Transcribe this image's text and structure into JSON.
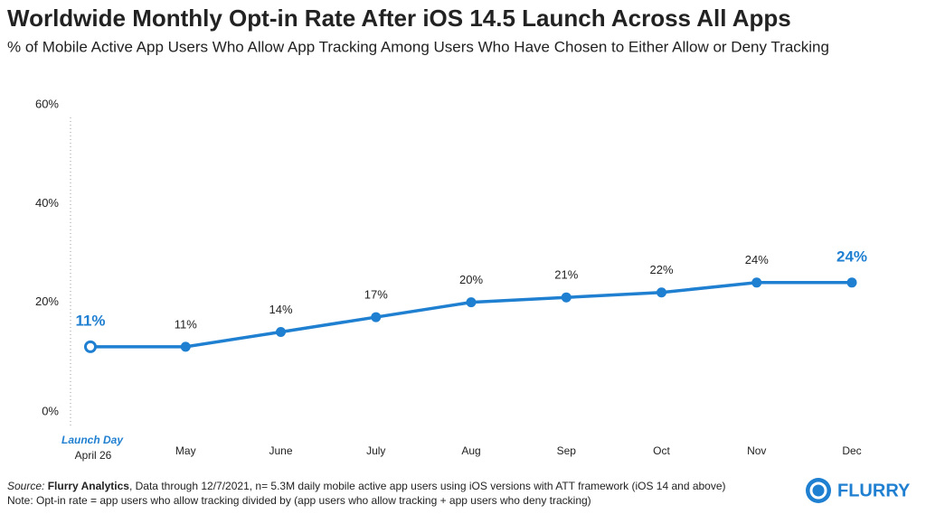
{
  "chart_data": {
    "type": "line",
    "title": "Worldwide Monthly Opt-in Rate After iOS 14.5 Launch Across All Apps",
    "subtitle": "% of Mobile Active App Users Who Allow App Tracking Among Users Who Have Chosen to Either Allow or Deny Tracking",
    "categories": [
      "April 26",
      "May",
      "June",
      "July",
      "Aug",
      "Sep",
      "Oct",
      "Nov",
      "Dec"
    ],
    "series": [
      {
        "color": "#1f7fd0",
        "values": [
          11,
          11,
          14,
          17,
          20,
          21,
          22,
          24,
          24
        ],
        "value_labels": [
          "11%",
          "11%",
          "14%",
          "17%",
          "20%",
          "21%",
          "22%",
          "24%",
          "24%"
        ]
      }
    ],
    "ylim": [
      0,
      60
    ],
    "yticks": [
      {
        "value": 0,
        "label": "0%"
      },
      {
        "value": 20,
        "label": "20%"
      },
      {
        "value": 40,
        "label": "40%"
      },
      {
        "value": 60,
        "label": "60%"
      }
    ],
    "grid": false,
    "annotation": "Launch Day",
    "source": {
      "prefix": "Source:",
      "name": "Flurry Analytics",
      "text": ", Data through 12/7/2021, n= 5.3M daily mobile active app users using iOS versions with ATT framework (iOS 14 and above)"
    },
    "note": "Note: Opt-in rate = app users who allow tracking divided by (app users who allow tracking + app users who deny tracking)",
    "logo": "FLURRY"
  }
}
